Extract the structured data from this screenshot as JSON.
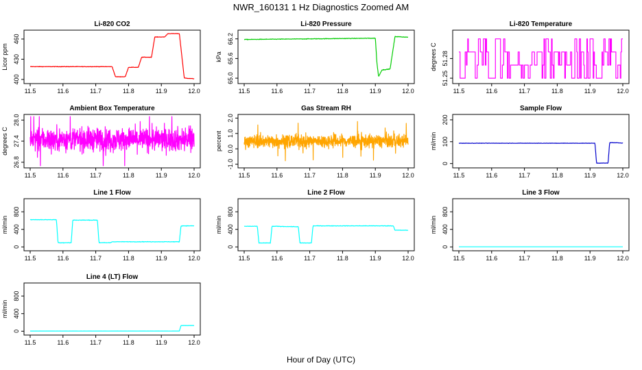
{
  "page": {
    "title": "NWR_160131  1 Hz Diagnostics Zoomed AM",
    "x_axis_label": "Hour of Day (UTC)"
  },
  "chart_data": [
    {
      "id": "co2",
      "type": "line",
      "title": "Li-820 CO2",
      "ylabel": "Licor ppm",
      "color": "#ff0000",
      "xlim": [
        11.5,
        12.0
      ],
      "ylim": [
        397,
        470
      ],
      "xticks": [
        11.5,
        11.6,
        11.7,
        11.8,
        11.9,
        12.0
      ],
      "yticks": [
        400,
        430,
        460
      ],
      "segments": [
        [
          11.5,
          419
        ],
        [
          11.75,
          419
        ],
        [
          11.76,
          404
        ],
        [
          11.79,
          404
        ],
        [
          11.8,
          418
        ],
        [
          11.83,
          418
        ],
        [
          11.84,
          433
        ],
        [
          11.87,
          433
        ],
        [
          11.88,
          463
        ],
        [
          11.91,
          463
        ],
        [
          11.92,
          468
        ],
        [
          11.955,
          468
        ],
        [
          11.97,
          402
        ],
        [
          12.0,
          401
        ]
      ],
      "noise": 0.6
    },
    {
      "id": "pressure",
      "type": "line",
      "title": "Li-820 Pressure",
      "ylabel": "kPa",
      "color": "#00cc00",
      "xlim": [
        11.5,
        12.0
      ],
      "ylim": [
        64.9,
        66.4
      ],
      "xticks": [
        11.5,
        11.6,
        11.7,
        11.8,
        11.9,
        12.0
      ],
      "yticks": [
        65.0,
        65.6,
        66.2
      ],
      "yticklabels": [
        "65.0",
        "65.6",
        "66.2"
      ],
      "segments": [
        [
          11.5,
          66.18
        ],
        [
          11.9,
          66.22
        ],
        [
          11.905,
          65.45
        ],
        [
          11.91,
          65.05
        ],
        [
          11.92,
          65.25
        ],
        [
          11.945,
          65.28
        ],
        [
          11.96,
          66.27
        ],
        [
          12.0,
          66.25
        ]
      ],
      "noise": 0.015
    },
    {
      "id": "temperature",
      "type": "line",
      "title": "Li-820 Temperature",
      "ylabel": "degrees C",
      "color": "#ff00ff",
      "xlim": [
        11.5,
        12.0
      ],
      "ylim": [
        51.245,
        51.32
      ],
      "xticks": [
        11.5,
        11.6,
        11.7,
        11.8,
        11.9,
        12.0
      ],
      "yticks": [
        51.25,
        51.28
      ],
      "levels": [
        51.25,
        51.27,
        51.29,
        51.31
      ],
      "pattern": "square_toggle"
    },
    {
      "id": "ambient",
      "type": "line",
      "title": "Ambient Box Temperature",
      "ylabel": "degrees C",
      "color": "#ff00ff",
      "xlim": [
        11.5,
        12.0
      ],
      "ylim": [
        26.7,
        28.1
      ],
      "xticks": [
        11.5,
        11.6,
        11.7,
        11.8,
        11.9,
        12.0
      ],
      "yticks": [
        26.8,
        27.4,
        28.0
      ],
      "yticklabels": [
        "26.8",
        "27.4",
        "28.0"
      ],
      "mean": 27.45,
      "noise": 0.35,
      "pattern": "noise"
    },
    {
      "id": "rh",
      "type": "line",
      "title": "Gas Stream RH",
      "ylabel": "percent",
      "color": "#ffa500",
      "xlim": [
        11.5,
        12.0
      ],
      "ylim": [
        -1.1,
        2.1
      ],
      "xticks": [
        11.5,
        11.6,
        11.7,
        11.8,
        11.9,
        12.0
      ],
      "yticks": [
        -1.0,
        0.0,
        1.0,
        2.0
      ],
      "yticklabels": [
        "-1.0",
        "0.0",
        "1.0",
        "2.0"
      ],
      "mean": 0.5,
      "noise": 0.45,
      "pattern": "noise"
    },
    {
      "id": "sampleflow",
      "type": "line",
      "title": "Sample Flow",
      "ylabel": "ml/min",
      "color": "#0000cc",
      "xlim": [
        11.5,
        12.0
      ],
      "ylim": [
        -10,
        215
      ],
      "xticks": [
        11.5,
        11.6,
        11.7,
        11.8,
        11.9,
        12.0
      ],
      "yticks": [
        0,
        100,
        200
      ],
      "segments": [
        [
          11.5,
          93
        ],
        [
          11.915,
          93
        ],
        [
          11.92,
          2
        ],
        [
          11.955,
          2
        ],
        [
          11.96,
          96
        ],
        [
          12.0,
          94
        ]
      ],
      "noise": 1.5
    },
    {
      "id": "line1",
      "type": "line",
      "title": "Line 1 Flow",
      "ylabel": "ml/min",
      "color": "#00ffff",
      "xlim": [
        11.5,
        12.0
      ],
      "ylim": [
        -40,
        1050
      ],
      "xticks": [
        11.5,
        11.6,
        11.7,
        11.8,
        11.9,
        12.0
      ],
      "yticks": [
        0,
        400,
        800
      ],
      "segments": [
        [
          11.5,
          620
        ],
        [
          11.58,
          620
        ],
        [
          11.585,
          95
        ],
        [
          11.625,
          95
        ],
        [
          11.63,
          610
        ],
        [
          11.705,
          610
        ],
        [
          11.71,
          95
        ],
        [
          11.745,
          95
        ],
        [
          11.75,
          118
        ],
        [
          11.955,
          118
        ],
        [
          11.96,
          480
        ],
        [
          12.0,
          480
        ]
      ],
      "noise": 10
    },
    {
      "id": "line2",
      "type": "line",
      "title": "Line 2 Flow",
      "ylabel": "ml/min",
      "color": "#00ffff",
      "xlim": [
        11.5,
        12.0
      ],
      "ylim": [
        -40,
        1050
      ],
      "xticks": [
        11.5,
        11.6,
        11.7,
        11.8,
        11.9,
        12.0
      ],
      "yticks": [
        0,
        400,
        800
      ],
      "segments": [
        [
          11.5,
          470
        ],
        [
          11.54,
          470
        ],
        [
          11.545,
          90
        ],
        [
          11.58,
          90
        ],
        [
          11.585,
          470
        ],
        [
          11.665,
          460
        ],
        [
          11.67,
          90
        ],
        [
          11.705,
          90
        ],
        [
          11.71,
          480
        ],
        [
          11.955,
          480
        ],
        [
          11.96,
          380
        ],
        [
          12.0,
          380
        ]
      ],
      "noise": 10
    },
    {
      "id": "line3",
      "type": "line",
      "title": "Line 3 Flow",
      "ylabel": "ml/min",
      "color": "#00ffff",
      "xlim": [
        11.5,
        12.0
      ],
      "ylim": [
        -40,
        1050
      ],
      "xticks": [
        11.5,
        11.6,
        11.7,
        11.8,
        11.9,
        12.0
      ],
      "yticks": [
        0,
        400,
        800
      ],
      "segments": [
        [
          11.5,
          3
        ],
        [
          12.0,
          3
        ]
      ],
      "noise": 1
    },
    {
      "id": "line4",
      "type": "line",
      "title": "Line 4 (LT) Flow",
      "ylabel": "ml/min",
      "color": "#00ffff",
      "xlim": [
        11.5,
        12.0
      ],
      "ylim": [
        -40,
        1050
      ],
      "xticks": [
        11.5,
        11.6,
        11.7,
        11.8,
        11.9,
        12.0
      ],
      "yticks": [
        0,
        400,
        800
      ],
      "segments": [
        [
          11.5,
          4
        ],
        [
          11.955,
          4
        ],
        [
          11.96,
          130
        ],
        [
          12.0,
          130
        ]
      ],
      "noise": 2
    }
  ]
}
